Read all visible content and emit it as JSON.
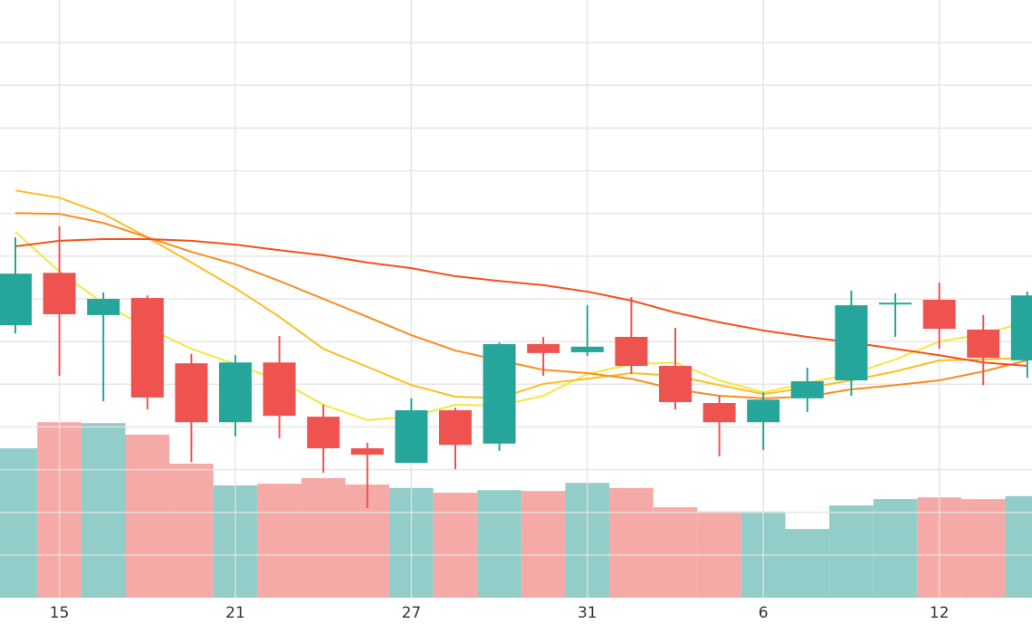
{
  "chart_data": {
    "type": "candlestick",
    "categories": [
      null,
      "15",
      null,
      null,
      null,
      "21",
      null,
      null,
      null,
      "27",
      null,
      null,
      null,
      "31",
      null,
      null,
      null,
      "6",
      null,
      null,
      null,
      "12",
      null,
      null
    ],
    "open": [
      63.8,
      76.1,
      66.2,
      70.2,
      54.9,
      41.1,
      55.1,
      42.4,
      35.0,
      31.6,
      43.9,
      36.1,
      59.4,
      57.5,
      61.1,
      54.3,
      45.6,
      41.1,
      46.7,
      50.9,
      68.7,
      69.8,
      62.8,
      55.6
    ],
    "high": [
      84.4,
      87.0,
      71.5,
      70.8,
      57.1,
      56.8,
      61.3,
      45.2,
      36.3,
      46.7,
      44.5,
      59.8,
      61.1,
      68.5,
      70.4,
      63.2,
      47.3,
      48.1,
      53.9,
      71.9,
      71.3,
      73.8,
      66.2,
      71.7
    ],
    "low": [
      61.9,
      52.0,
      46.0,
      44.1,
      31.8,
      37.8,
      37.3,
      29.3,
      21.0,
      31.6,
      30.1,
      34.4,
      52.0,
      56.6,
      52.4,
      44.1,
      33.1,
      34.6,
      43.5,
      47.3,
      61.1,
      58.3,
      49.8,
      51.5
    ],
    "close": [
      75.9,
      66.4,
      70.0,
      46.9,
      41.1,
      55.1,
      42.6,
      35.0,
      33.5,
      43.9,
      35.8,
      59.4,
      57.3,
      58.8,
      54.3,
      45.8,
      41.1,
      46.4,
      50.7,
      68.5,
      69.1,
      63.0,
      56.2,
      70.8
    ],
    "volume": [
      35.0,
      41.1,
      40.9,
      38.2,
      31.4,
      26.3,
      26.7,
      28.0,
      26.5,
      25.7,
      24.6,
      25.2,
      25.0,
      26.9,
      25.7,
      21.2,
      20.2,
      20.2,
      16.1,
      21.6,
      23.1,
      23.5,
      23.1,
      23.8
    ],
    "up_color": "#26a69a",
    "down_color": "#ef5350",
    "up_volume_color": "#92cdc9",
    "down_volume_color": "#f6aaa7",
    "series": [
      {
        "color": "#f5e642",
        "values": [
          85.7,
          76.4,
          68.9,
          63.2,
          58.3,
          54.7,
          50.9,
          45.2,
          41.6,
          42.4,
          45.2,
          45.0,
          47.3,
          52.4,
          54.7,
          55.1,
          50.9,
          48.1,
          50.3,
          52.4,
          55.8,
          60.0,
          61.7,
          64.7
        ]
      },
      {
        "color": "#fbbf24",
        "values": [
          95.4,
          93.7,
          89.9,
          84.4,
          78.5,
          72.5,
          65.8,
          58.3,
          54.1,
          49.8,
          47.1,
          46.7,
          50.1,
          51.3,
          52.6,
          52.0,
          49.8,
          47.7,
          49.2,
          50.9,
          53.0,
          55.6,
          55.8,
          56.2
        ]
      },
      {
        "color": "#fb8c1f",
        "values": [
          90.1,
          89.9,
          87.8,
          84.4,
          81.0,
          78.1,
          74.2,
          70.0,
          65.8,
          61.5,
          57.9,
          55.6,
          53.4,
          52.6,
          51.3,
          48.8,
          47.3,
          46.7,
          47.1,
          48.8,
          49.8,
          50.9,
          53.0,
          55.6
        ]
      },
      {
        "color": "#f4511e",
        "values": [
          82.3,
          83.6,
          84.0,
          84.0,
          83.6,
          82.7,
          81.4,
          80.2,
          78.5,
          77.2,
          75.3,
          74.2,
          73.2,
          71.7,
          69.6,
          66.8,
          64.5,
          62.6,
          61.1,
          59.8,
          58.3,
          56.8,
          55.1,
          54.3
        ]
      }
    ],
    "ylim": [
      0,
      140
    ],
    "yticks": [
      10,
      20,
      30,
      40,
      50,
      60,
      70,
      80,
      90,
      100,
      110,
      120,
      130
    ],
    "grid": true
  }
}
